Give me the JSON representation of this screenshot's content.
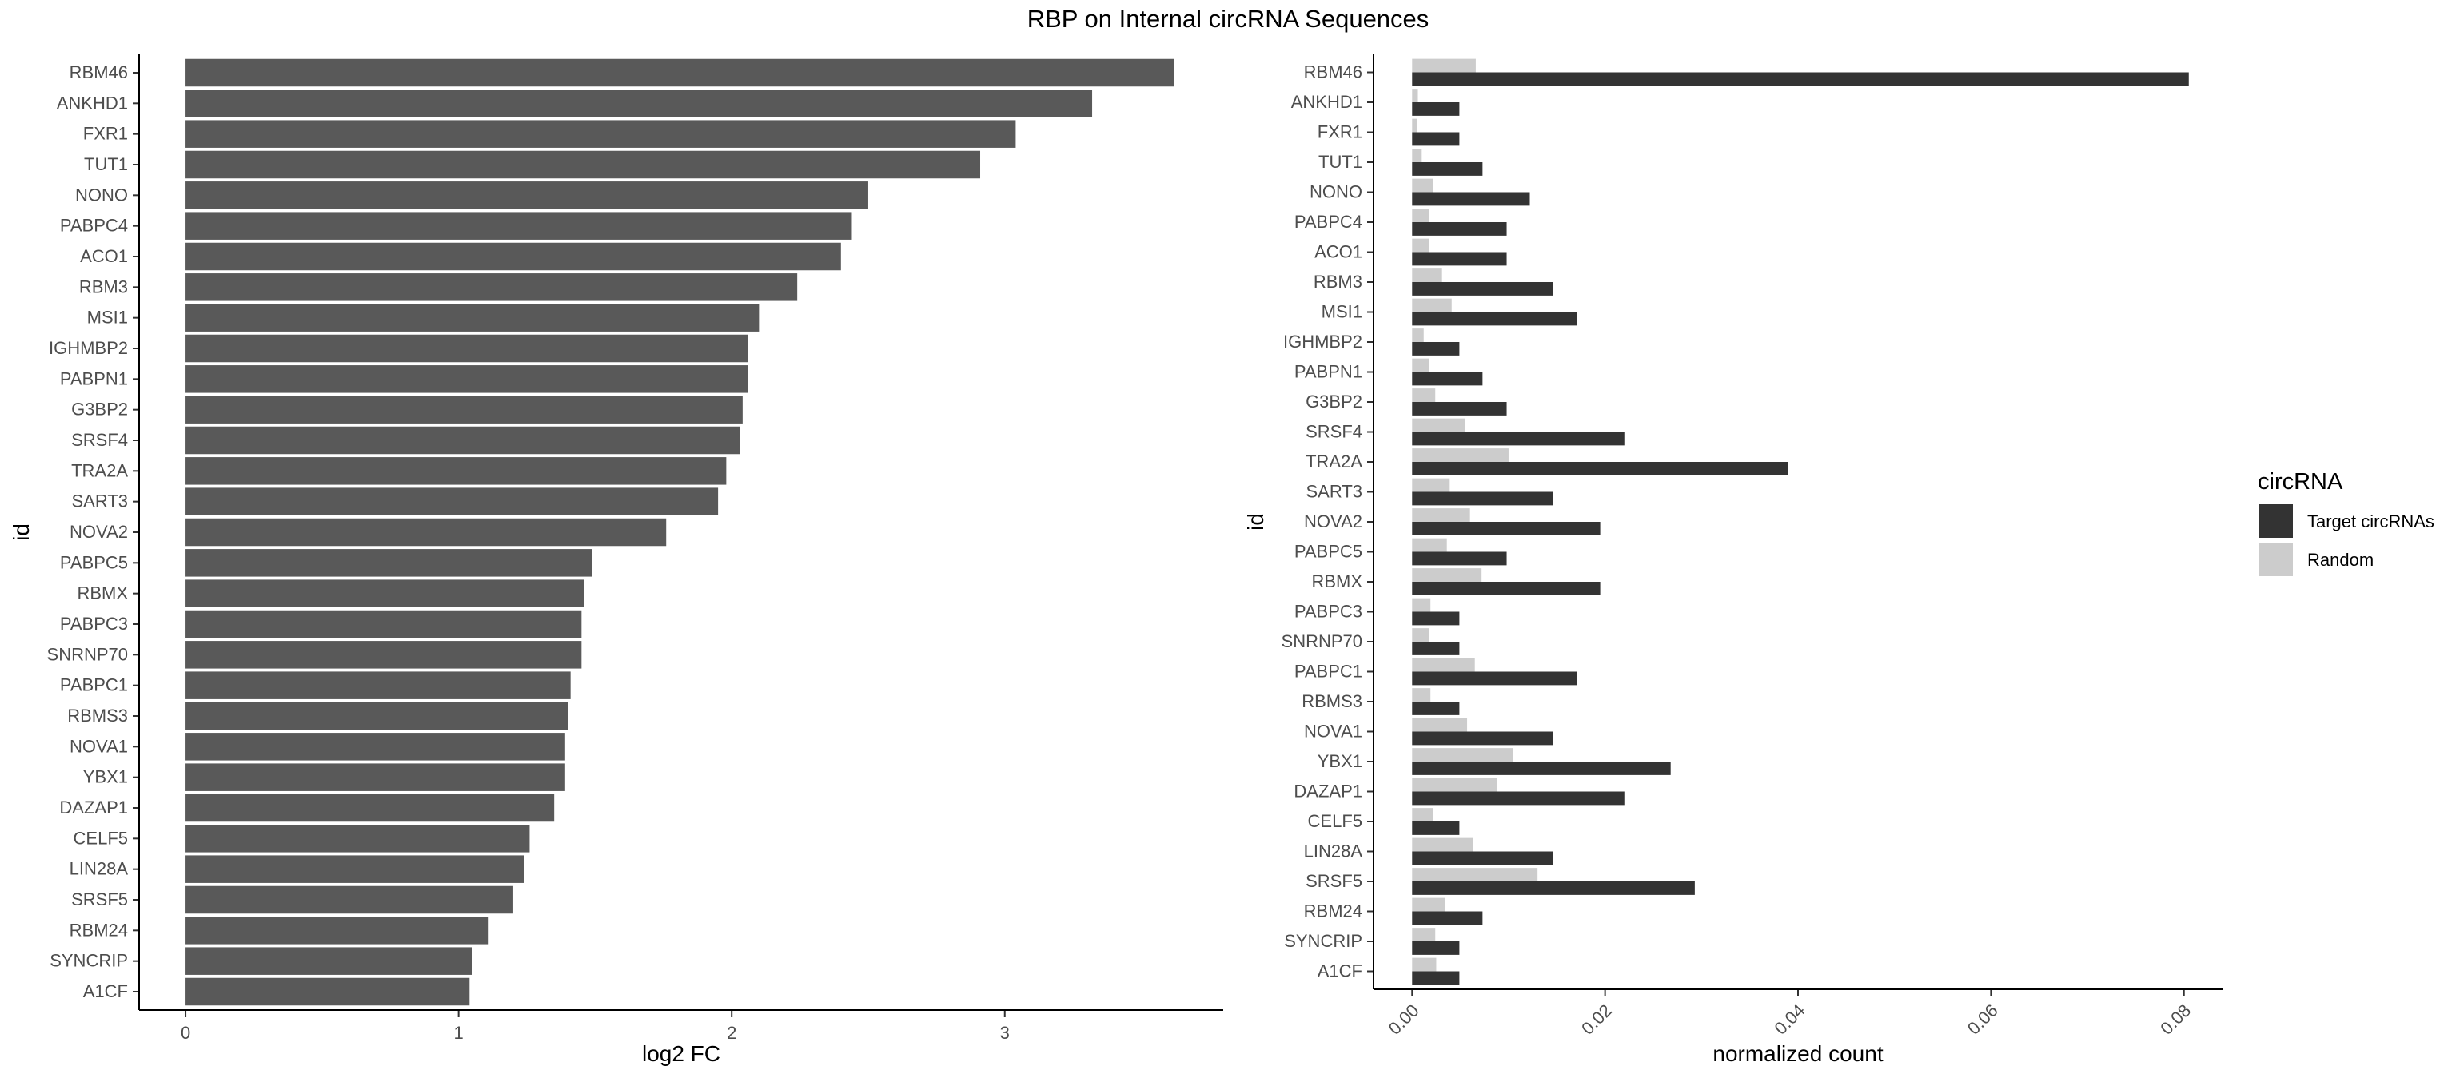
{
  "title": "RBP on Internal circRNA Sequences",
  "colors": {
    "left_bar": "#595959",
    "target": "#333333",
    "random": "#cccccc",
    "axis": "#000000",
    "tick_text": "#4d4d4d"
  },
  "chart_data": [
    {
      "type": "bar",
      "orientation": "horizontal",
      "xlabel": "log2 FC",
      "ylabel": "id",
      "xlim": [
        -0.17,
        3.8
      ],
      "xticks": [
        0,
        1,
        2,
        3
      ],
      "grid": false,
      "categories": [
        "RBM46",
        "ANKHD1",
        "FXR1",
        "TUT1",
        "NONO",
        "PABPC4",
        "ACO1",
        "RBM3",
        "MSI1",
        "IGHMBP2",
        "PABPN1",
        "G3BP2",
        "SRSF4",
        "TRA2A",
        "SART3",
        "NOVA2",
        "PABPC5",
        "RBMX",
        "PABPC3",
        "SNRNP70",
        "PABPC1",
        "RBMS3",
        "NOVA1",
        "YBX1",
        "DAZAP1",
        "CELF5",
        "LIN28A",
        "SRSF5",
        "RBM24",
        "SYNCRIP",
        "A1CF"
      ],
      "values": [
        3.62,
        3.32,
        3.04,
        2.91,
        2.5,
        2.44,
        2.4,
        2.24,
        2.1,
        2.06,
        2.06,
        2.04,
        2.03,
        1.98,
        1.95,
        1.76,
        1.49,
        1.46,
        1.45,
        1.45,
        1.41,
        1.4,
        1.39,
        1.39,
        1.35,
        1.26,
        1.24,
        1.2,
        1.11,
        1.05,
        1.04
      ]
    },
    {
      "type": "bar",
      "orientation": "horizontal",
      "xlabel": "normalized count",
      "ylabel": "id",
      "xlim": [
        -0.004,
        0.084
      ],
      "xticks": [
        "0.00",
        "0.02",
        "0.04",
        "0.06",
        "0.08"
      ],
      "grid": false,
      "legend": {
        "title": "circRNA",
        "placement": "right"
      },
      "categories": [
        "RBM46",
        "ANKHD1",
        "FXR1",
        "TUT1",
        "NONO",
        "PABPC4",
        "ACO1",
        "RBM3",
        "MSI1",
        "IGHMBP2",
        "PABPN1",
        "G3BP2",
        "SRSF4",
        "TRA2A",
        "SART3",
        "NOVA2",
        "PABPC5",
        "RBMX",
        "PABPC3",
        "SNRNP70",
        "PABPC1",
        "RBMS3",
        "NOVA1",
        "YBX1",
        "DAZAP1",
        "CELF5",
        "LIN28A",
        "SRSF5",
        "RBM24",
        "SYNCRIP",
        "A1CF"
      ],
      "series": [
        {
          "name": "Target circRNAs",
          "values": [
            0.0805,
            0.0049,
            0.0049,
            0.0073,
            0.0122,
            0.0098,
            0.0098,
            0.0146,
            0.0171,
            0.0049,
            0.0073,
            0.0098,
            0.022,
            0.039,
            0.0146,
            0.0195,
            0.0098,
            0.0195,
            0.0049,
            0.0049,
            0.0171,
            0.0049,
            0.0146,
            0.0268,
            0.022,
            0.0049,
            0.0146,
            0.0293,
            0.0073,
            0.0049,
            0.0049
          ]
        },
        {
          "name": "Random",
          "values": [
            0.0066,
            0.0006,
            0.0005,
            0.001,
            0.0022,
            0.0018,
            0.0018,
            0.0031,
            0.0041,
            0.0012,
            0.0018,
            0.0024,
            0.0055,
            0.01,
            0.0039,
            0.006,
            0.0036,
            0.0072,
            0.0019,
            0.0018,
            0.0065,
            0.0019,
            0.0057,
            0.0105,
            0.0088,
            0.0022,
            0.0063,
            0.013,
            0.0034,
            0.0024,
            0.0025
          ]
        }
      ]
    }
  ]
}
